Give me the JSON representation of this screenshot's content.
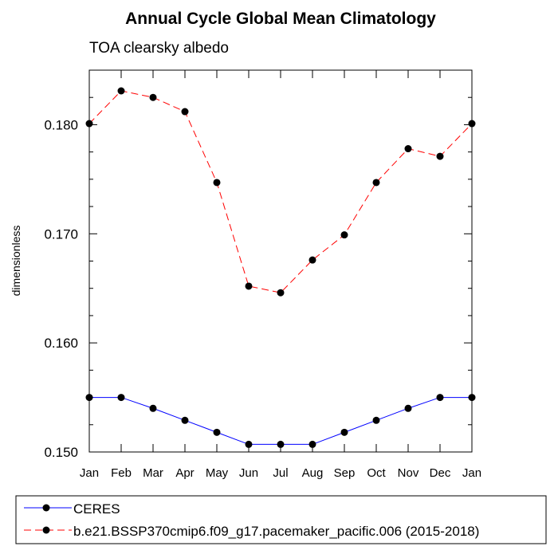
{
  "chart_data": {
    "type": "line",
    "title": "Annual Cycle Global Mean Climatology",
    "subtitle": "TOA clearsky albedo",
    "xlabel": "",
    "ylabel": "dimensionless",
    "categories": [
      "Jan",
      "Feb",
      "Mar",
      "Apr",
      "May",
      "Jun",
      "Jul",
      "Aug",
      "Sep",
      "Oct",
      "Nov",
      "Dec",
      "Jan"
    ],
    "ylim": [
      0.15,
      0.185
    ],
    "y_ticks": [
      "0.150",
      "0.160",
      "0.170",
      "0.180"
    ],
    "grid": false,
    "legend_position": "bottom",
    "series": [
      {
        "name": "CERES",
        "color": "#0000ff",
        "line_style": "solid",
        "marker": "filled-circle",
        "values": [
          0.155,
          0.155,
          0.154,
          0.1529,
          0.1518,
          0.1507,
          0.1507,
          0.1507,
          0.1518,
          0.1529,
          0.154,
          0.155,
          0.155
        ]
      },
      {
        "name": "b.e21.BSSP370cmip6.f09_g17.pacemaker_pacific.006 (2015-2018)",
        "color": "#ff0000",
        "line_style": "dashed",
        "marker": "filled-circle",
        "values": [
          0.1801,
          0.1831,
          0.1825,
          0.1812,
          0.1747,
          0.1652,
          0.1646,
          0.1676,
          0.1699,
          0.1747,
          0.1778,
          0.1771,
          0.1801
        ]
      }
    ]
  }
}
